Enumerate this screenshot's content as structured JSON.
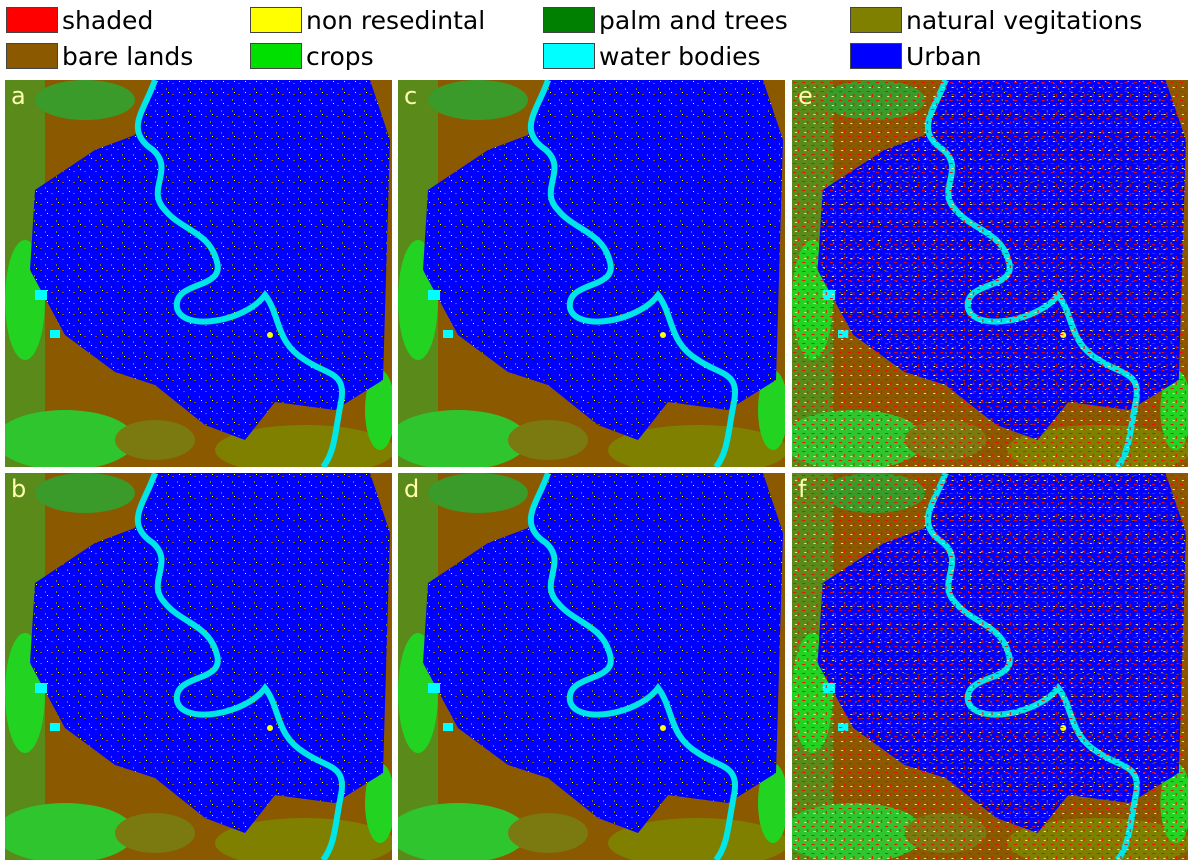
{
  "legend": [
    {
      "label": "shaded",
      "color": "#ff0000"
    },
    {
      "label": "non resedintal",
      "color": "#ffff00"
    },
    {
      "label": "palm and trees",
      "color": "#008000"
    },
    {
      "label": "natural vegitations",
      "color": "#808000"
    },
    {
      "label": "bare lands",
      "color": "#8b5a00"
    },
    {
      "label": "crops",
      "color": "#00e000"
    },
    {
      "label": "water bodies",
      "color": "#00ffff"
    },
    {
      "label": "Urban",
      "color": "#0000ff"
    }
  ],
  "panels": [
    {
      "label": "a"
    },
    {
      "label": "b"
    },
    {
      "label": "c"
    },
    {
      "label": "d"
    },
    {
      "label": "e"
    },
    {
      "label": "f"
    }
  ]
}
